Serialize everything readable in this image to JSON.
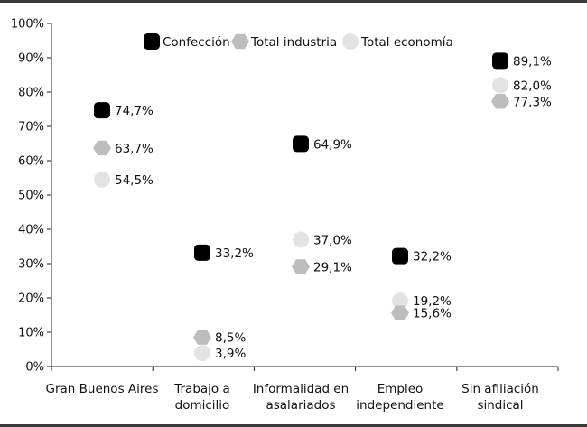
{
  "chart_data": {
    "type": "scatter",
    "title": "",
    "xlabel": "",
    "ylabel": "",
    "ylim": [
      0,
      100
    ],
    "y_ticks": [
      "0%",
      "10%",
      "20%",
      "30%",
      "40%",
      "50%",
      "60%",
      "70%",
      "80%",
      "90%",
      "100%"
    ],
    "categories": [
      [
        "Gran Buenos Aires"
      ],
      [
        "Trabajo a",
        "domicilio"
      ],
      [
        "Informalidad en",
        "asalariados"
      ],
      [
        "Empleo",
        "independiente"
      ],
      [
        "Sin afiliación",
        "sindical"
      ]
    ],
    "legend_position": "top",
    "grid": false,
    "series": [
      {
        "name": "Confección",
        "marker": "rounded-square",
        "color": "#000000",
        "values": [
          74.7,
          33.2,
          64.9,
          32.2,
          89.1
        ],
        "labels": [
          "74,7%",
          "33,2%",
          "64,9%",
          "32,2%",
          "89,1%"
        ]
      },
      {
        "name": "Total industria",
        "marker": "hexagon",
        "color": "#bdbdbd",
        "values": [
          63.7,
          8.5,
          29.1,
          15.6,
          77.3
        ],
        "labels": [
          "63,7%",
          "8,5%",
          "29,1%",
          "15,6%",
          "77,3%"
        ]
      },
      {
        "name": "Total economía",
        "marker": "circle",
        "color": "#e3e3e3",
        "values": [
          54.5,
          3.9,
          37.0,
          19.2,
          82.0
        ],
        "labels": [
          "54,5%",
          "3,9%",
          "37,0%",
          "19,2%",
          "82,0%"
        ]
      }
    ]
  }
}
